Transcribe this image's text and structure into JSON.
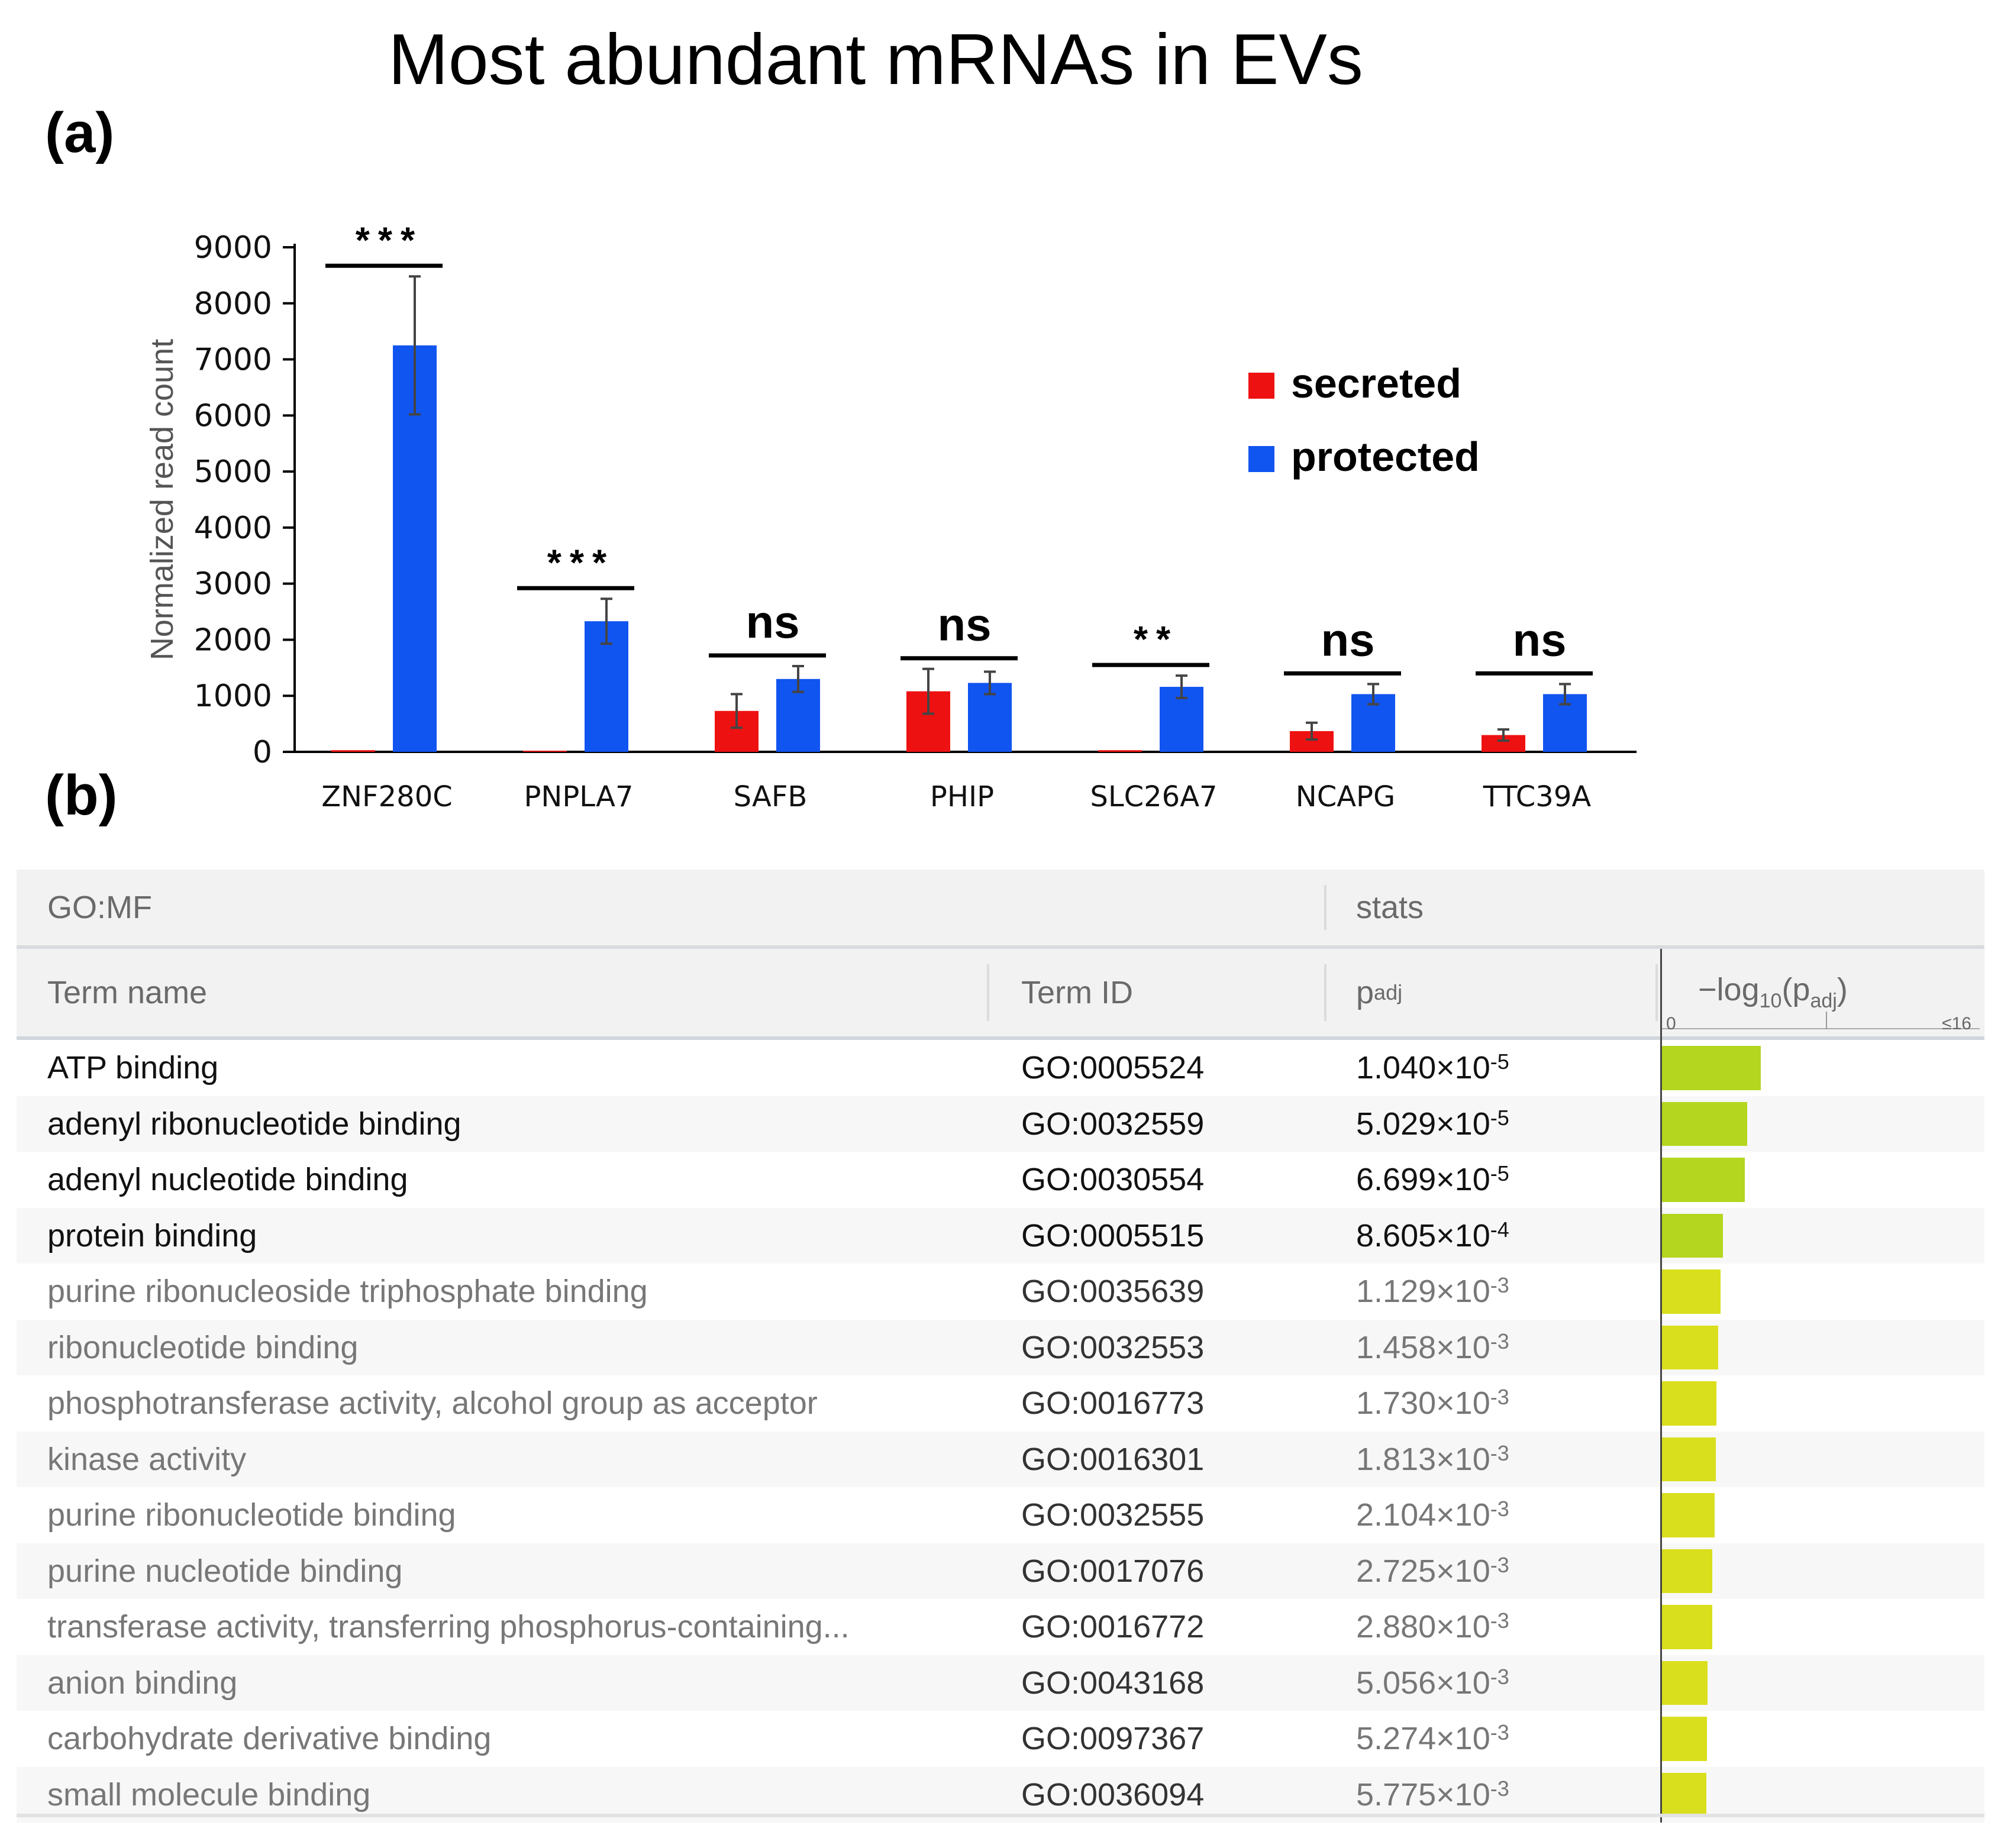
{
  "figure": {
    "title": "Most abundant mRNAs in EVs",
    "panel_a_label": "(a)",
    "panel_b_label": "(b)"
  },
  "chart_data": {
    "type": "bar",
    "title": "Most abundant mRNAs in EVs",
    "xlabel": "",
    "ylabel": "Normalized read count",
    "ylim": [
      0,
      9000
    ],
    "yticks": [
      0,
      1000,
      2000,
      3000,
      4000,
      5000,
      6000,
      7000,
      8000,
      9000
    ],
    "categories": [
      "ZNF280C",
      "PNPLA7",
      "SAFB",
      "PHIP",
      "SLC26A7",
      "NCAPG",
      "TTC39A"
    ],
    "series": [
      {
        "name": "secreted",
        "color": "#ee1111",
        "values": [
          30,
          20,
          730,
          1080,
          30,
          370,
          300
        ],
        "errors": [
          0,
          0,
          300,
          400,
          0,
          150,
          100
        ]
      },
      {
        "name": "protected",
        "color": "#1155f0",
        "values": [
          7250,
          2330,
          1300,
          1230,
          1160,
          1030,
          1030
        ],
        "errors": [
          1230,
          400,
          230,
          200,
          200,
          180,
          180
        ]
      }
    ],
    "significance": [
      "***",
      "***",
      "ns",
      "ns",
      "**",
      "ns",
      "ns"
    ],
    "legend_position": "top-right"
  },
  "table": {
    "section_title": "GO:MF",
    "stats_title": "stats",
    "columns": {
      "term_name": "Term name",
      "term_id": "Term ID",
      "p_main": "p",
      "p_sub": "adj",
      "log_prefix": "−log",
      "log_sub": "10",
      "log_mid": "(p",
      "log_sub2": "adj",
      "log_suffix": ")",
      "scale_min": "0",
      "scale_max": "≤16"
    },
    "bar_color_start": "#b4d61e",
    "bar_color_end": "#d9df1c",
    "rows": [
      {
        "name": "ATP binding",
        "id": "GO:0005524",
        "mant": "1.040×10",
        "exp": "-5",
        "neglog": 4.98
      },
      {
        "name": "adenyl ribonucleotide binding",
        "id": "GO:0032559",
        "mant": "5.029×10",
        "exp": "-5",
        "neglog": 4.3
      },
      {
        "name": "adenyl nucleotide binding",
        "id": "GO:0030554",
        "mant": "6.699×10",
        "exp": "-5",
        "neglog": 4.17
      },
      {
        "name": "protein binding",
        "id": "GO:0005515",
        "mant": "8.605×10",
        "exp": "-4",
        "neglog": 3.07
      },
      {
        "name": "purine ribonucleoside triphosphate binding",
        "id": "GO:0035639",
        "mant": "1.129×10",
        "exp": "-3",
        "neglog": 2.95
      },
      {
        "name": "ribonucleotide binding",
        "id": "GO:0032553",
        "mant": "1.458×10",
        "exp": "-3",
        "neglog": 2.84
      },
      {
        "name": "phosphotransferase activity, alcohol group as acceptor",
        "id": "GO:0016773",
        "mant": "1.730×10",
        "exp": "-3",
        "neglog": 2.76
      },
      {
        "name": "kinase activity",
        "id": "GO:0016301",
        "mant": "1.813×10",
        "exp": "-3",
        "neglog": 2.74
      },
      {
        "name": "purine ribonucleotide binding",
        "id": "GO:0032555",
        "mant": "2.104×10",
        "exp": "-3",
        "neglog": 2.68
      },
      {
        "name": "purine nucleotide binding",
        "id": "GO:0017076",
        "mant": "2.725×10",
        "exp": "-3",
        "neglog": 2.56
      },
      {
        "name": "transferase activity, transferring phosphorus-containing...",
        "id": "GO:0016772",
        "mant": "2.880×10",
        "exp": "-3",
        "neglog": 2.54
      },
      {
        "name": "anion binding",
        "id": "GO:0043168",
        "mant": "5.056×10",
        "exp": "-3",
        "neglog": 2.3
      },
      {
        "name": "carbohydrate derivative binding",
        "id": "GO:0097367",
        "mant": "5.274×10",
        "exp": "-3",
        "neglog": 2.28
      },
      {
        "name": "small molecule binding",
        "id": "GO:0036094",
        "mant": "5.775×10",
        "exp": "-3",
        "neglog": 2.24
      }
    ]
  }
}
